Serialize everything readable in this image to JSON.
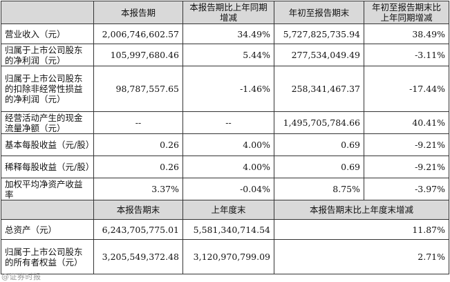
{
  "header1": {
    "col1": "本报告期",
    "col2": "本报告期比上年同期增减",
    "col3": "年初至报告期末",
    "col4": "年初至报告期末比上年同期增减"
  },
  "rows1": [
    {
      "label": "营业收入（元）",
      "v1": "2,006,746,602.57",
      "v2": "34.49%",
      "v3": "5,727,825,735.94",
      "v4": "38.49%"
    },
    {
      "label": "归属于上市公司股东的净利润（元）",
      "v1": "105,997,680.46",
      "v2": "5.44%",
      "v3": "277,534,049.49",
      "v4": "-3.11%"
    },
    {
      "label": "归属于上市公司股东的扣除非经常性损益的净利润（元）",
      "v1": "98,787,557.65",
      "v2": "-1.46%",
      "v3": "258,341,467.37",
      "v4": "-17.44%"
    },
    {
      "label": "经营活动产生的现金流量净额（元）",
      "v1": "--",
      "v2": "--",
      "v3": "1,495,705,784.66",
      "v4": "40.41%"
    },
    {
      "label": "基本每股收益（元/股）",
      "v1": "0.26",
      "v2": "4.00%",
      "v3": "0.69",
      "v4": "-9.21%"
    },
    {
      "label": "稀释每股收益（元/股）",
      "v1": "0.26",
      "v2": "4.00%",
      "v3": "0.69",
      "v4": "-9.21%"
    },
    {
      "label": "加权平均净资产收益率",
      "v1": "3.37%",
      "v2": "-0.04%",
      "v3": "8.75%",
      "v4": "-3.97%"
    }
  ],
  "header2": {
    "col1": "本报告期末",
    "col2": "上年度末",
    "col3": "本报告期末比上年度末增减"
  },
  "rows2": [
    {
      "label": "总资产（元）",
      "v1": "6,243,705,775.01",
      "v2": "5,581,340,714.54",
      "v3": "11.87%"
    },
    {
      "label": "归属于上市公司股东的所有者权益（元）",
      "v1": "3,205,549,372.48",
      "v2": "3,120,970,799.09",
      "v3": "2.71%"
    }
  ],
  "watermark": "@证券时报"
}
